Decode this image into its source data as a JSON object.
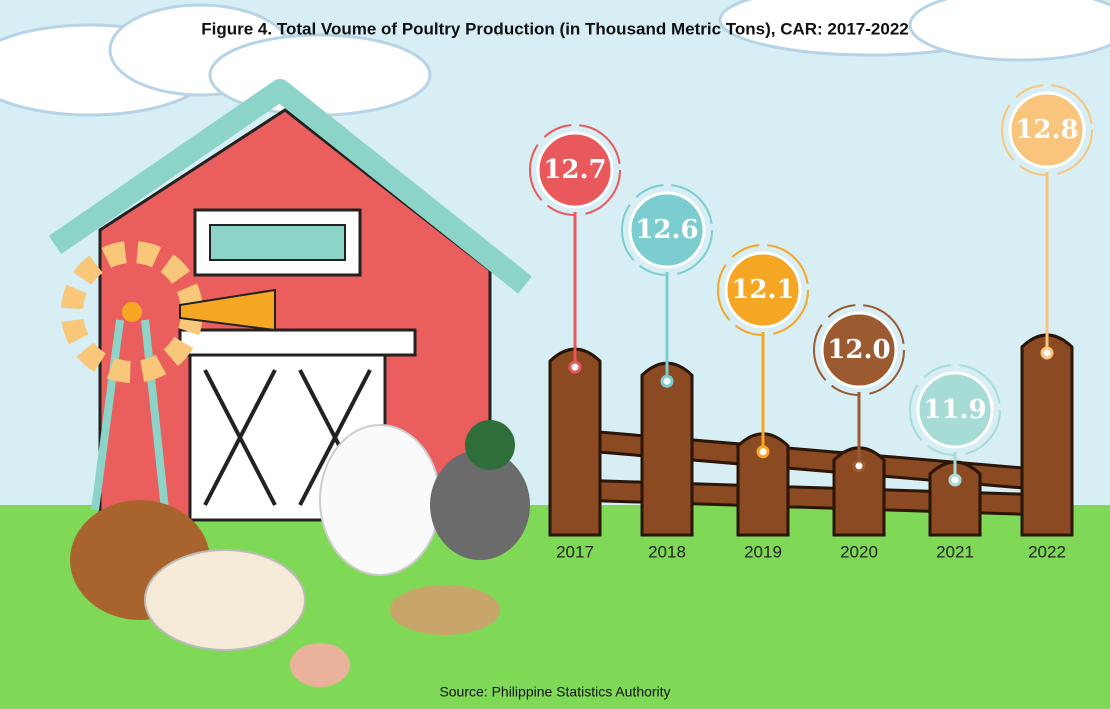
{
  "chart_data": {
    "type": "bar",
    "title": "Figure 4. Total Voume of Poultry Production (in Thousand Metric Tons), CAR: 2017-2022",
    "categories": [
      "2017",
      "2018",
      "2019",
      "2020",
      "2021",
      "2022"
    ],
    "values": [
      12.7,
      12.6,
      12.1,
      12.0,
      11.9,
      12.8
    ],
    "value_labels": [
      "12.7",
      "12.6",
      "12.1",
      "12.0",
      "11.9",
      "12.8"
    ],
    "colors": [
      "#e9585a",
      "#7ccdd0",
      "#f5a623",
      "#9b5a30",
      "#a6dcd5",
      "#f9c47c"
    ],
    "color": "#8b4a22",
    "source": "Source: Philippine Statistics Authority"
  }
}
